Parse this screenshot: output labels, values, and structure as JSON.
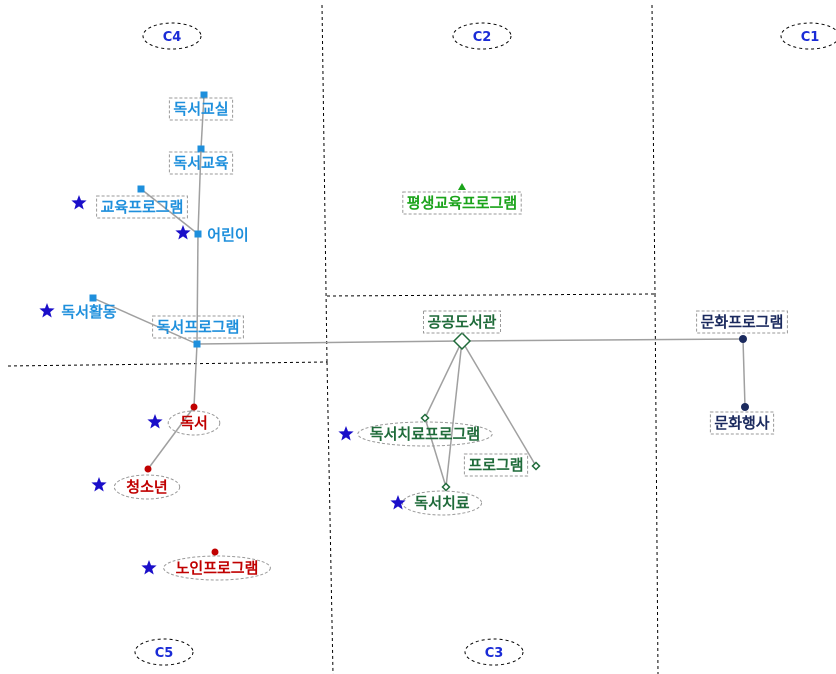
{
  "clusters": [
    {
      "id": "c1",
      "label": "C1"
    },
    {
      "id": "c2",
      "label": "C2"
    },
    {
      "id": "c3",
      "label": "C3"
    },
    {
      "id": "c4",
      "label": "C4"
    },
    {
      "id": "c5",
      "label": "C5"
    }
  ],
  "colors": {
    "c4": "#1e8fdc",
    "c5": "#c00000",
    "c2": "#1aa31a",
    "c3": "#1f6b3a",
    "c1": "#1b2a5e",
    "star": "#1a0ec9",
    "edge": "#a0a0a0"
  },
  "nodes": [
    {
      "id": "n_reading_class",
      "text": "독서교실",
      "cluster": "c4",
      "star": false
    },
    {
      "id": "n_reading_edu",
      "text": "독서교육",
      "cluster": "c4",
      "star": false
    },
    {
      "id": "n_edu_program",
      "text": "교육프로그램",
      "cluster": "c4",
      "star": true
    },
    {
      "id": "n_children",
      "text": "어린이",
      "cluster": "c4",
      "star": true
    },
    {
      "id": "n_reading_activity",
      "text": "독서활동",
      "cluster": "c4",
      "star": true
    },
    {
      "id": "n_reading_program",
      "text": "독서프로그램",
      "cluster": "c4",
      "star": false
    },
    {
      "id": "n_lifelong",
      "text": "평생교육프로그램",
      "cluster": "c2",
      "star": false
    },
    {
      "id": "n_public_library",
      "text": "공공도서관",
      "cluster": "c3",
      "star": false
    },
    {
      "id": "n_culture_program",
      "text": "문화프로그램",
      "cluster": "c1",
      "star": false
    },
    {
      "id": "n_culture_event",
      "text": "문화행사",
      "cluster": "c1",
      "star": false
    },
    {
      "id": "n_reading",
      "text": "독서",
      "cluster": "c5",
      "star": true
    },
    {
      "id": "n_youth",
      "text": "청소년",
      "cluster": "c5",
      "star": true
    },
    {
      "id": "n_senior_program",
      "text": "노인프로그램",
      "cluster": "c5",
      "star": true
    },
    {
      "id": "n_bibliotherapy_program",
      "text": "독서치료프로그램",
      "cluster": "c3",
      "star": true
    },
    {
      "id": "n_program",
      "text": "프로그램",
      "cluster": "c3",
      "star": false
    },
    {
      "id": "n_bibliotherapy",
      "text": "독서치료",
      "cluster": "c3",
      "star": true
    }
  ],
  "edges": [
    {
      "from": "n_reading_class",
      "to": "n_reading_edu"
    },
    {
      "from": "n_reading_edu",
      "to": "n_children"
    },
    {
      "from": "n_edu_program",
      "to": "n_children"
    },
    {
      "from": "n_children",
      "to": "n_reading_program"
    },
    {
      "from": "n_reading_activity",
      "to": "n_reading_program"
    },
    {
      "from": "n_reading_program",
      "to": "n_public_library"
    },
    {
      "from": "n_reading_program",
      "to": "n_reading"
    },
    {
      "from": "n_reading",
      "to": "n_youth"
    },
    {
      "from": "n_public_library",
      "to": "n_culture_program"
    },
    {
      "from": "n_culture_program",
      "to": "n_culture_event"
    },
    {
      "from": "n_public_library",
      "to": "n_bibliotherapy_program"
    },
    {
      "from": "n_public_library",
      "to": "n_program"
    },
    {
      "from": "n_public_library",
      "to": "n_bibliotherapy"
    },
    {
      "from": "n_bibliotherapy_program",
      "to": "n_bibliotherapy"
    }
  ]
}
